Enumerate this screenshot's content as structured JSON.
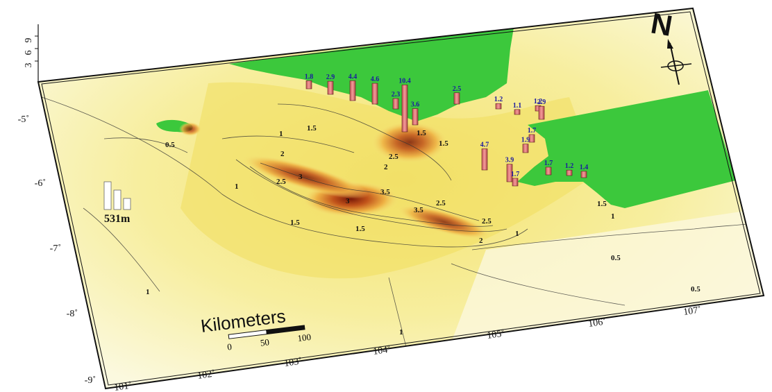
{
  "map": {
    "lat_ticks": [
      "-5˚",
      "-6˚",
      "-7˚",
      "-8˚",
      "-9˚"
    ],
    "lon_ticks": [
      "101˚",
      "102˚",
      "103˚",
      "104˚",
      "105˚",
      "106˚",
      "107˚"
    ],
    "z_axis_labels": [
      "3",
      "6",
      "9"
    ],
    "colors": {
      "land": "#3cc83c",
      "sea_low": "#fbf9d8",
      "sea_mid": "#f2e36a",
      "sea_high": "#e6a030",
      "sea_peak": "#8e2a12",
      "obs_bar": "#f08080"
    }
  },
  "scale_bar": {
    "title": "Kilometers",
    "labels": [
      "0",
      "50",
      "100"
    ]
  },
  "north_arrow": {
    "label": "N"
  },
  "legend": {
    "reference_label": "531m"
  },
  "observations": [
    "1.8",
    "2.9",
    "4.4",
    "4.6",
    "2.3",
    "10.4",
    "3.6",
    "2.5",
    "1.2",
    "1.1",
    "1.2",
    "2.9",
    "1.7",
    "1.9",
    "4.7",
    "3.9",
    "1.7",
    "1.7",
    "1.2",
    "1.4"
  ],
  "contour_labels": [
    "1",
    "1.5",
    "2",
    "2.5",
    "3",
    "3.5",
    "0.5",
    "1",
    "1.5",
    "2",
    "2.5",
    "3",
    "3.5",
    "2.5",
    "1.5",
    "2",
    "1.5",
    "1",
    "1",
    "0.5",
    "0.5",
    "1",
    "1",
    "1.5",
    "2.5",
    "1.5"
  ]
}
